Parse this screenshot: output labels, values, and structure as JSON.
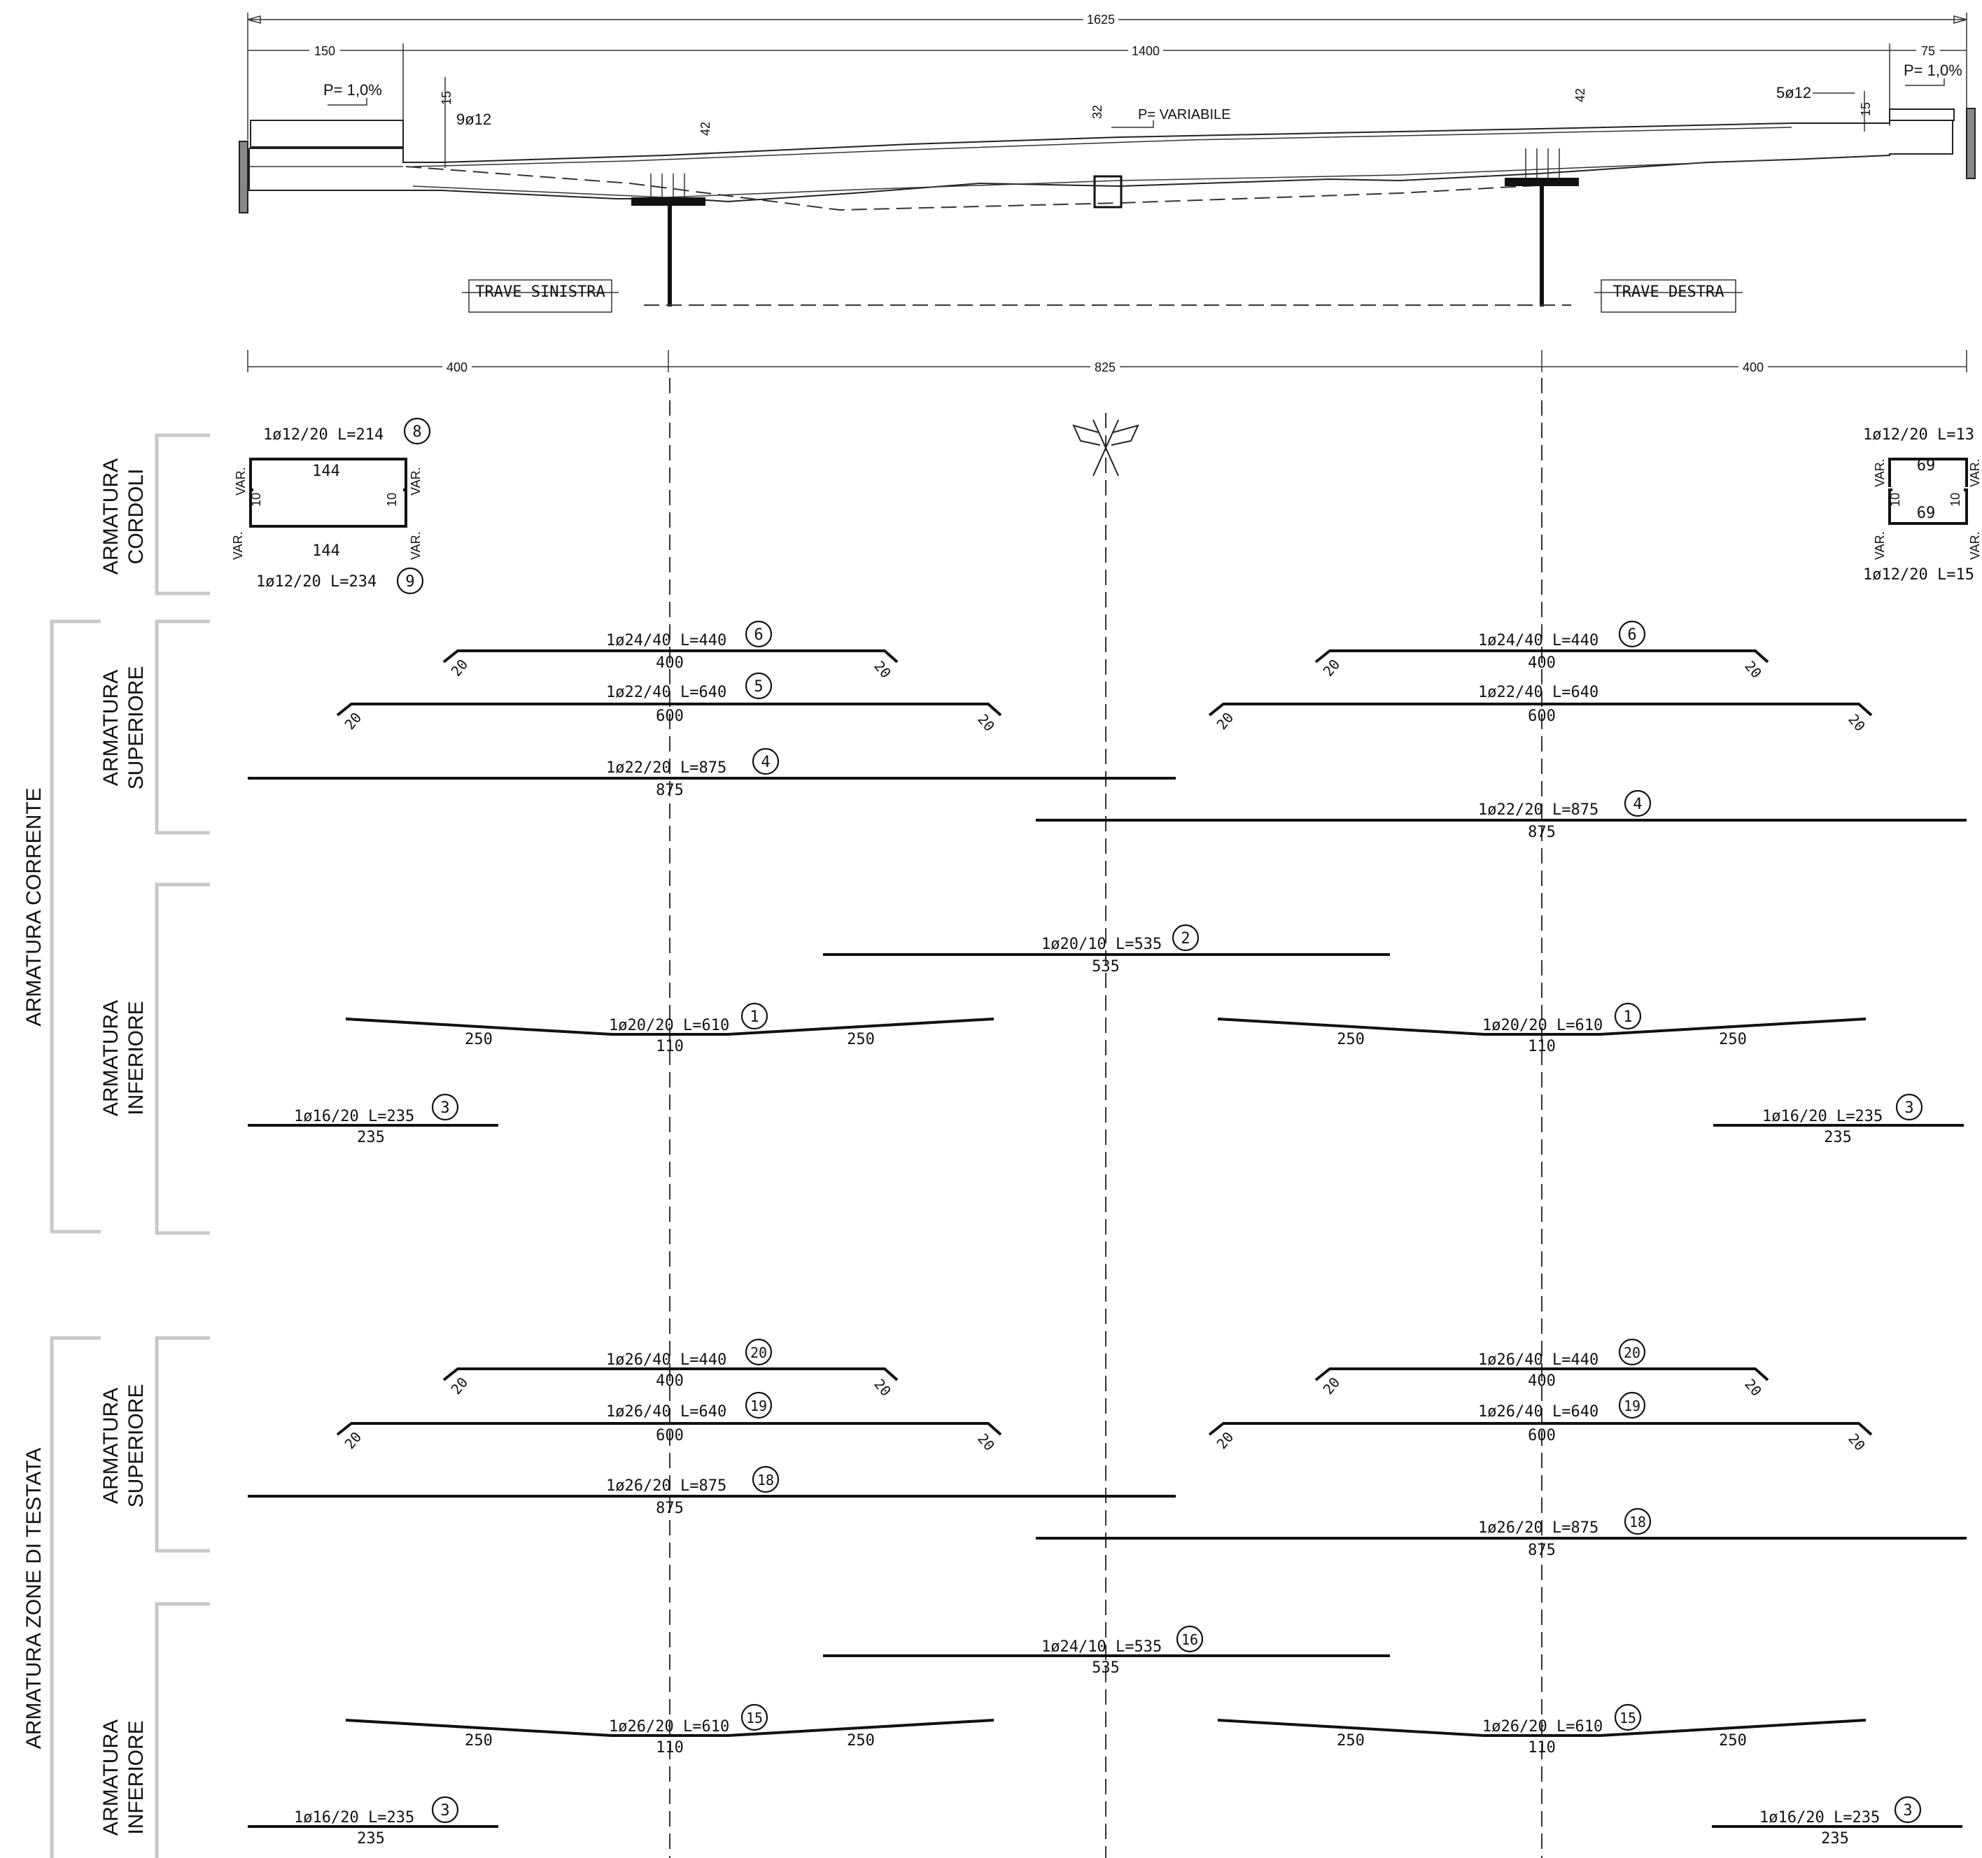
{
  "section": {
    "dims_top": {
      "total": "1625",
      "left": "150",
      "middle": "1400",
      "right": "75"
    },
    "slope_left": "P= 1,0%",
    "slope_right": "P= 1,0%",
    "slope_center": "P= VARIABILE",
    "thickness_left": "15",
    "thickness_right": "15",
    "thickness_girder_left": "42",
    "thickness_girder_right": "42",
    "thickness_center": "32",
    "bars_left": "9ø12",
    "bars_right": "5ø12",
    "trave_sinistra": "TRAVE SINISTRA",
    "trave_destra": "TRAVE DESTRA",
    "dims_bottom": {
      "left": "400",
      "middle": "825",
      "right": "400"
    }
  },
  "group_labels": {
    "corrente": "ARMATURA  CORRENTE",
    "testata": "ARMATURA  ZONE DI TESTATA"
  },
  "sub_labels": {
    "cordoli": [
      "ARMATURA",
      "CORDOLI"
    ],
    "superiore_1": [
      "ARMATURA",
      "SUPERIORE"
    ],
    "inferiore_1": [
      "ARMATURA",
      "INFERIORE"
    ],
    "superiore_2": [
      "ARMATURA",
      "SUPERIORE"
    ],
    "inferiore_2": [
      "ARMATURA",
      "INFERIORE"
    ]
  },
  "cordoli": {
    "left_top_label": "1ø12/20  L=214",
    "left_top_mark": "8",
    "left_top_len": "144",
    "left_bot_label": "1ø12/20  L=234",
    "left_bot_mark": "9",
    "left_bot_len": "144",
    "right_top_label": "1ø12/20  L=13",
    "right_top_len": "69",
    "right_bot_label": "1ø12/20  L=15",
    "right_bot_len": "69",
    "var": "VAR.",
    "hook": "10"
  },
  "corrente": {
    "bar6": {
      "label": "1ø24/40  L=440",
      "mark": "6",
      "len": "400",
      "hook": "20"
    },
    "bar5": {
      "label": "1ø22/40  L=640",
      "mark": "5",
      "len": "600",
      "hook": "20"
    },
    "bar5r": {
      "label": "1ø22/40  L=640",
      "len": "600"
    },
    "bar4": {
      "label": "1ø22/20  L=875",
      "mark": "4",
      "len": "875"
    },
    "bar2": {
      "label": "1ø20/10  L=535",
      "mark": "2",
      "len": "535"
    },
    "bar1": {
      "label": "1ø20/20  L=610",
      "mark": "1",
      "len": "110",
      "side": "250"
    },
    "bar3": {
      "label": "1ø16/20  L=235",
      "mark": "3",
      "len": "235"
    }
  },
  "testata": {
    "bar20": {
      "label": "1ø26/40  L=440",
      "mark": "20",
      "len": "400",
      "hook": "20"
    },
    "bar19": {
      "label": "1ø26/40  L=640",
      "mark": "19",
      "len": "600",
      "hook": "20"
    },
    "bar18": {
      "label": "1ø26/20  L=875",
      "mark": "18",
      "len": "875"
    },
    "bar16": {
      "label": "1ø24/10  L=535",
      "mark": "16",
      "len": "535"
    },
    "bar15": {
      "label": "1ø26/20  L=610",
      "mark": "15",
      "len": "110",
      "side": "250"
    },
    "bar3": {
      "label": "1ø16/20  L=235",
      "mark": "3",
      "len": "235"
    }
  }
}
